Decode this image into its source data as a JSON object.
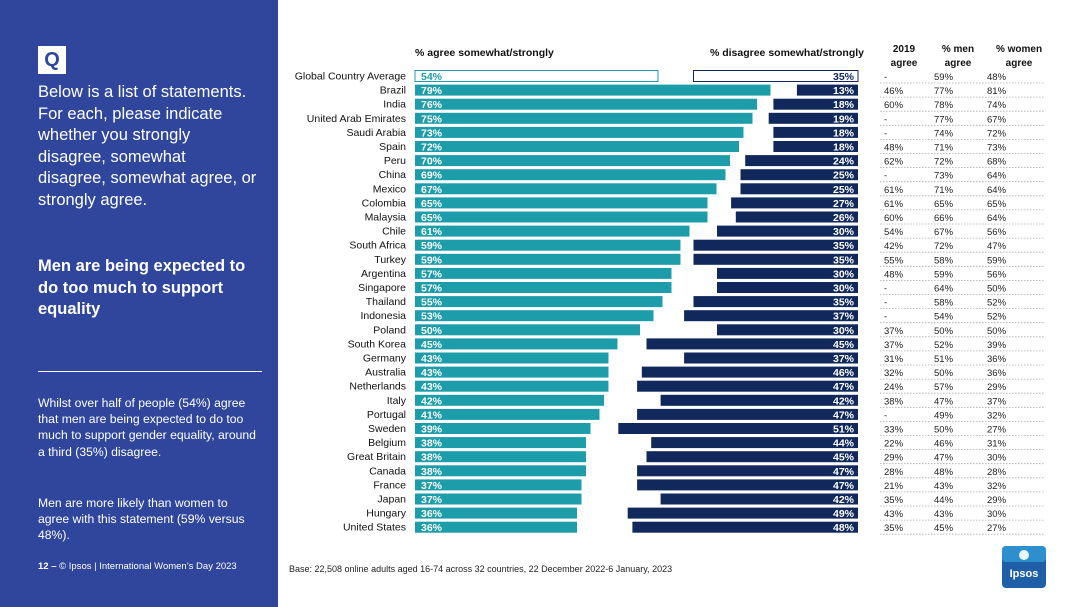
{
  "sidebar": {
    "q_badge": "Q",
    "question": "Below is a list of statements. For each, please indicate whether you strongly disagree, somewhat disagree, somewhat agree, or strongly agree.",
    "headline": "Men are being expected to do too much to support equality",
    "summary_1": "Whilst over half of people (54%) agree that men are being expected to do too much to support gender equality, around a third (35%) disagree.",
    "summary_2": "Men are more likely than women to agree with this statement (59% versus 48%).",
    "footer_page": "12 –",
    "footer_text": "© Ipsos | International Women’s Day 2023"
  },
  "base_note": "Base: 22,508 online adults aged 16-74 across 32 countries, 22 December 2022-6 January, 2023",
  "logo_text": "Ipsos",
  "colors": {
    "sidebar": "#2f469c",
    "agree": "#1c9da9",
    "disagree": "#10285c",
    "dots": "#aaaaaa"
  },
  "chart_data": {
    "type": "bar",
    "agree_header": "% agree somewhat/strongly",
    "disagree_header": "% disagree somewhat/strongly",
    "col_2019": "2019 agree",
    "col_men": "% men agree",
    "col_women": "% women agree",
    "categories": [
      "Global Country Average",
      "Brazil",
      "India",
      "United Arab Emirates",
      "Saudi Arabia",
      "Spain",
      "Peru",
      "China",
      "Mexico",
      "Colombia",
      "Malaysia",
      "Chile",
      "South Africa",
      "Turkey",
      "Argentina",
      "Singapore",
      "Thailand",
      "Indonesia",
      "Poland",
      "South Korea",
      "Germany",
      "Australia",
      "Netherlands",
      "Italy",
      "Portugal",
      "Sweden",
      "Belgium",
      "Great Britain",
      "Canada",
      "France",
      "Japan",
      "Hungary",
      "United States"
    ],
    "series": [
      {
        "name": "% agree somewhat/strongly",
        "values": [
          54,
          79,
          76,
          75,
          73,
          72,
          70,
          69,
          67,
          65,
          65,
          61,
          59,
          59,
          57,
          57,
          55,
          53,
          50,
          45,
          43,
          43,
          43,
          42,
          41,
          39,
          38,
          38,
          38,
          37,
          37,
          36,
          36
        ]
      },
      {
        "name": "% disagree somewhat/strongly",
        "values": [
          35,
          13,
          18,
          19,
          18,
          18,
          24,
          25,
          25,
          27,
          26,
          30,
          35,
          35,
          30,
          30,
          35,
          37,
          30,
          45,
          37,
          46,
          47,
          42,
          47,
          51,
          44,
          45,
          47,
          47,
          42,
          49,
          48
        ]
      }
    ],
    "agree_2019": [
      "-",
      "46%",
      "60%",
      "-",
      "-",
      "48%",
      "62%",
      "-",
      "61%",
      "61%",
      "60%",
      "54%",
      "42%",
      "55%",
      "48%",
      "-",
      "-",
      "-",
      "37%",
      "37%",
      "31%",
      "32%",
      "24%",
      "38%",
      "-",
      "33%",
      "22%",
      "29%",
      "28%",
      "21%",
      "35%",
      "43%",
      "35%"
    ],
    "men_agree": [
      "59%",
      "77%",
      "78%",
      "77%",
      "74%",
      "71%",
      "72%",
      "73%",
      "71%",
      "65%",
      "66%",
      "67%",
      "72%",
      "58%",
      "59%",
      "64%",
      "58%",
      "54%",
      "50%",
      "52%",
      "51%",
      "50%",
      "57%",
      "47%",
      "49%",
      "50%",
      "46%",
      "47%",
      "48%",
      "43%",
      "44%",
      "43%",
      "45%"
    ],
    "women_agree": [
      "48%",
      "81%",
      "74%",
      "67%",
      "72%",
      "73%",
      "68%",
      "64%",
      "64%",
      "65%",
      "64%",
      "56%",
      "47%",
      "59%",
      "56%",
      "50%",
      "52%",
      "52%",
      "50%",
      "39%",
      "36%",
      "36%",
      "29%",
      "37%",
      "32%",
      "27%",
      "31%",
      "30%",
      "28%",
      "32%",
      "29%",
      "30%",
      "27%"
    ]
  }
}
